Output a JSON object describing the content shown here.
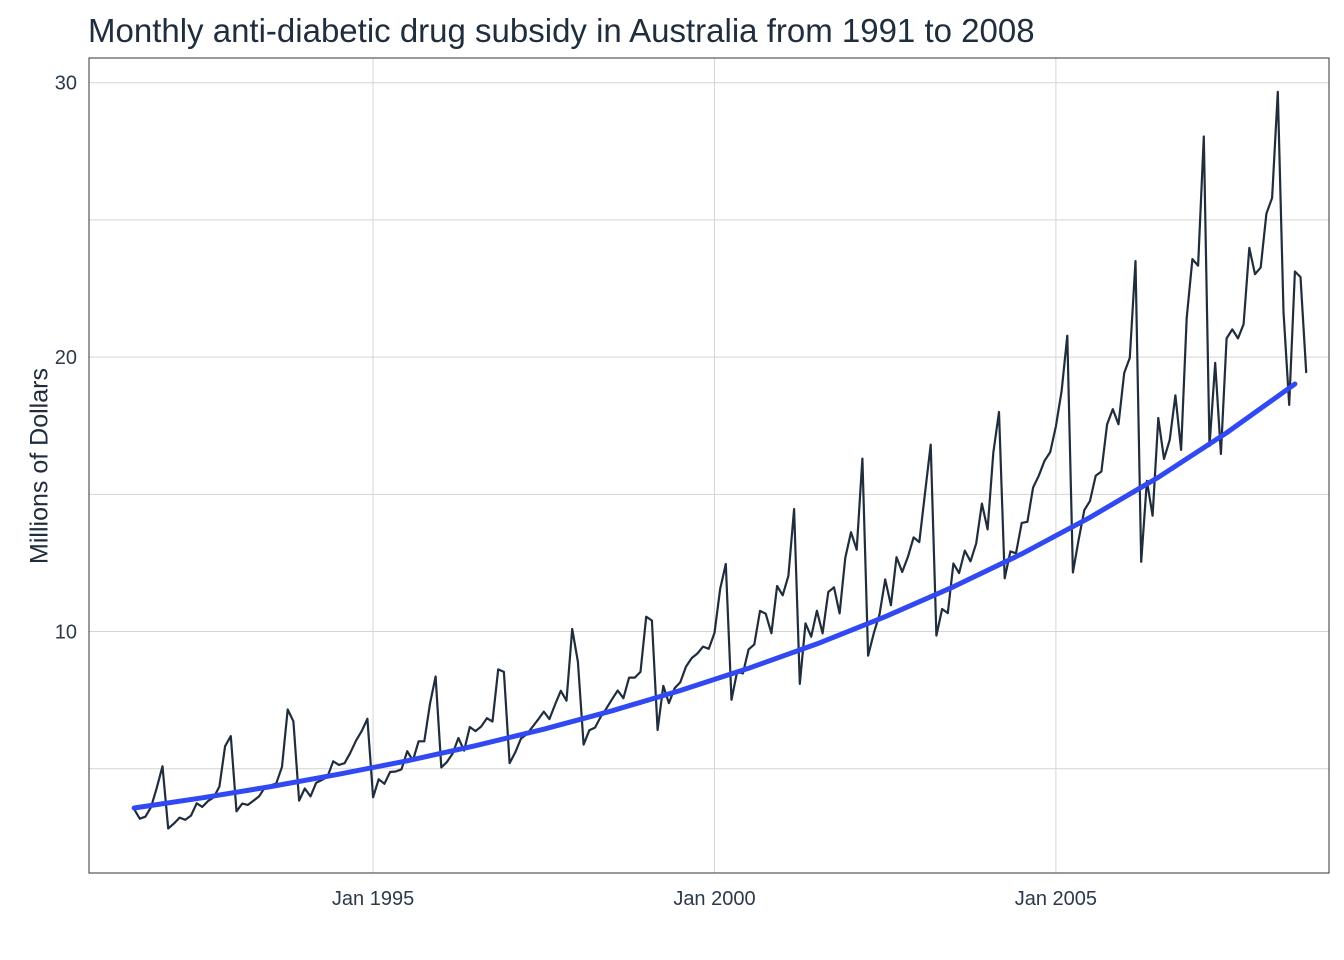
{
  "chart_data": {
    "type": "line",
    "title": "Monthly anti-diabetic drug subsidy in Australia from 1991 to 2008",
    "xlabel": "",
    "ylabel": "Millions of Dollars",
    "x_ticks": [
      {
        "value": 1995,
        "label": "Jan 1995"
      },
      {
        "value": 2000,
        "label": "Jan 2000"
      },
      {
        "value": 2005,
        "label": "Jan 2005"
      }
    ],
    "y_ticks": [
      10,
      20,
      30
    ],
    "xlim": [
      1990.84,
      2009.0
    ],
    "ylim": [
      1.2,
      30.9
    ],
    "grid": true,
    "series": [
      {
        "style": "observed",
        "color": "#1f2d3d",
        "x_start": 1991.5,
        "step": 0.08333333,
        "values": [
          3.53,
          3.18,
          3.25,
          3.61,
          4.31,
          5.09,
          2.82,
          3.0,
          3.22,
          3.14,
          3.29,
          3.74,
          3.61,
          3.82,
          3.96,
          4.35,
          5.82,
          6.19,
          3.45,
          3.73,
          3.68,
          3.84,
          4.0,
          4.32,
          4.39,
          4.47,
          5.07,
          7.16,
          6.73,
          3.84,
          4.28,
          3.99,
          4.49,
          4.59,
          4.71,
          5.27,
          5.14,
          5.2,
          5.58,
          6.02,
          6.37,
          6.82,
          3.96,
          4.62,
          4.45,
          4.88,
          4.9,
          4.98,
          5.64,
          5.3,
          6.0,
          6.0,
          7.37,
          8.36,
          5.05,
          5.25,
          5.56,
          6.12,
          5.66,
          6.52,
          6.37,
          6.54,
          6.84,
          6.72,
          8.62,
          8.53,
          5.2,
          5.6,
          6.1,
          6.25,
          6.52,
          6.79,
          7.08,
          6.81,
          7.34,
          7.84,
          7.48,
          10.09,
          8.9,
          5.88,
          6.4,
          6.5,
          6.89,
          7.19,
          7.53,
          7.85,
          7.57,
          8.32,
          8.32,
          8.53,
          10.54,
          10.4,
          6.41,
          8.02,
          7.39,
          7.93,
          8.15,
          8.72,
          9.03,
          9.2,
          9.45,
          9.37,
          9.95,
          11.56,
          12.46,
          7.51,
          8.55,
          8.47,
          9.35,
          9.53,
          10.75,
          10.65,
          9.94,
          11.66,
          11.32,
          12.03,
          14.46,
          8.09,
          10.3,
          9.81,
          10.76,
          9.93,
          11.44,
          11.61,
          10.66,
          12.69,
          13.62,
          12.98,
          16.3,
          9.12,
          9.94,
          10.62,
          11.9,
          10.96,
          12.71,
          12.17,
          12.72,
          13.43,
          13.26,
          15.04,
          16.81,
          9.85,
          10.82,
          10.67,
          12.48,
          12.13,
          12.95,
          12.56,
          13.21,
          14.66,
          13.72,
          16.51,
          18.0,
          11.94,
          12.92,
          12.85,
          13.96,
          14.0,
          15.25,
          15.68,
          16.22,
          16.54,
          17.48,
          18.76,
          20.78,
          12.15,
          13.34,
          14.42,
          14.76,
          15.68,
          15.83,
          17.55,
          18.1,
          17.55,
          19.42,
          19.98,
          23.5,
          12.54,
          15.49,
          14.22,
          17.78,
          16.29,
          16.98,
          18.61,
          16.62,
          21.43,
          23.57,
          23.33,
          28.04,
          16.76,
          19.79,
          16.47,
          20.68,
          21.01,
          20.68,
          21.2,
          23.98,
          23.02,
          23.27,
          25.23,
          25.8,
          29.67,
          21.65,
          18.26,
          23.12,
          22.92,
          19.45
        ]
      },
      {
        "style": "trend",
        "color": "#3049f2",
        "x": [
          1991.5,
          1992.5,
          1993.5,
          1994.5,
          1995.5,
          1996.5,
          1997.5,
          1998.5,
          1999.5,
          2000.5,
          2001.5,
          2002.5,
          2003.5,
          2004.5,
          2005.5,
          2006.5,
          2007.5,
          2008.5
        ],
        "values": [
          3.57,
          3.94,
          4.35,
          4.8,
          5.29,
          5.84,
          6.44,
          7.11,
          7.85,
          8.66,
          9.55,
          10.54,
          11.63,
          12.83,
          14.16,
          15.62,
          17.24,
          19.02
        ]
      }
    ]
  }
}
